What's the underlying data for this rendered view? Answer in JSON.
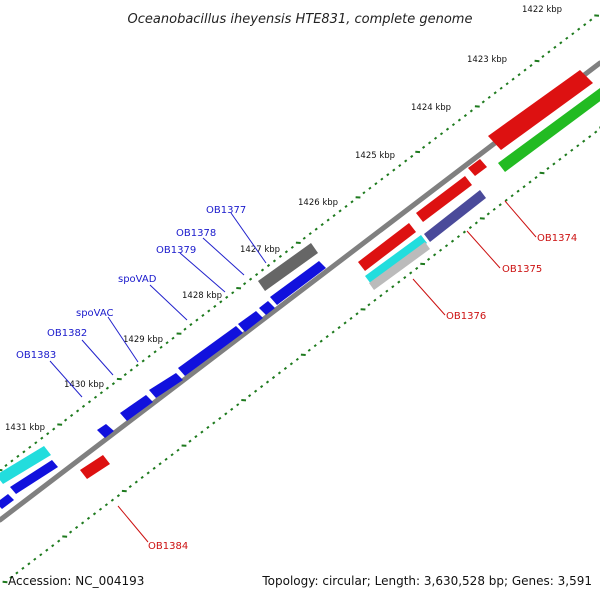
{
  "title": "Oceanobacillus iheyensis HTE831, complete genome",
  "accession": "Accession: NC_004193",
  "summary": "Topology: circular; Length: 3,630,528 bp; Genes: 3,591",
  "ruler_labels": [
    "1422 kbp",
    "1423 kbp",
    "1424 kbp",
    "1425 kbp",
    "1426 kbp",
    "1427 kbp",
    "1428 kbp",
    "1429 kbp",
    "1430 kbp",
    "1431 kbp"
  ],
  "gene_labels_upper": [
    "OB1377",
    "OB1378",
    "OB1379",
    "spoVAD",
    "spoVAC",
    "OB1382",
    "OB1383"
  ],
  "gene_labels_lower": [
    "OB1374",
    "OB1375",
    "OB1376",
    "OB1384"
  ],
  "colors": {
    "backbone": "#808080",
    "ticks": "#1e7a1e",
    "gene_blue": "#1111dd",
    "gene_red": "#dd1111",
    "gene_green": "#22bb22",
    "gene_cyan": "#22dddd",
    "gene_gray": "#666666",
    "gene_purple": "#4a4a9a",
    "gene_silver": "#bbbbbb",
    "label_blue": "#1a1acc",
    "label_red": "#cc1111"
  }
}
